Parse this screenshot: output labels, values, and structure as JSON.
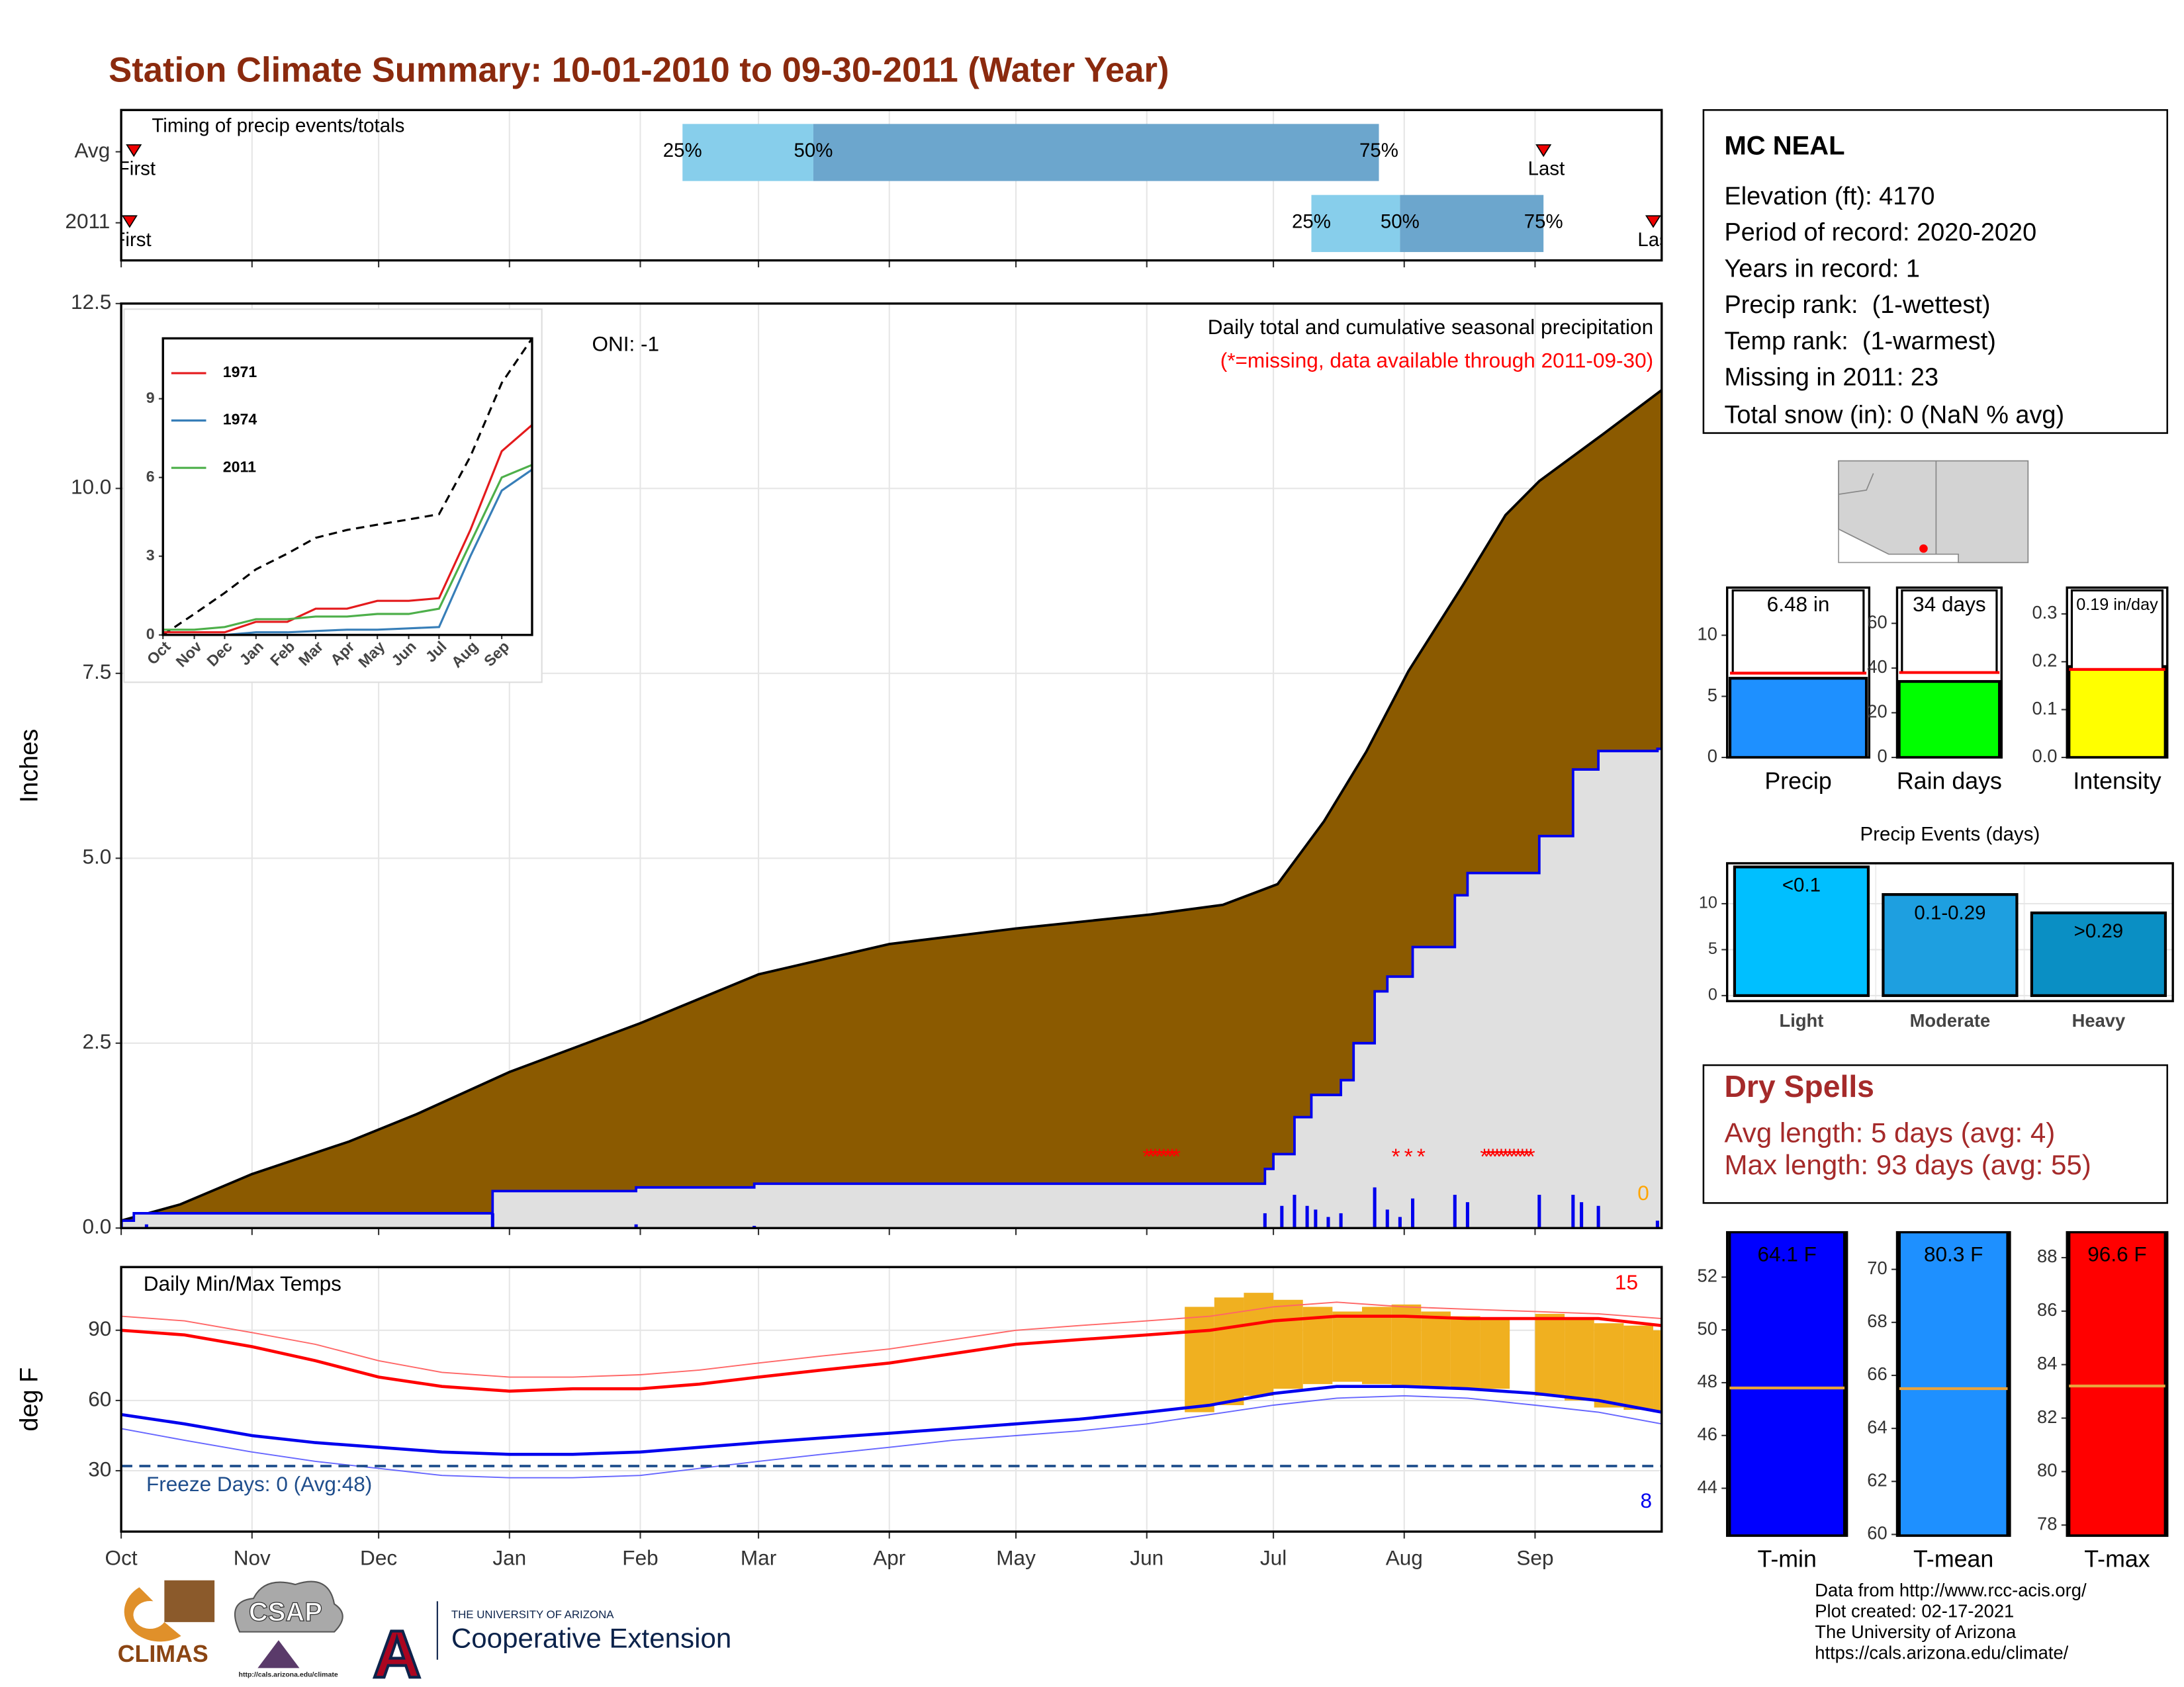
{
  "title": "Station Climate Summary: 10-01-2010 to 09-30-2011 (Water Year)",
  "station": {
    "name": "MC NEAL",
    "lines": [
      "Elevation (ft): 4170",
      "Period of record: 2020-2020",
      "Years in record: 1",
      "Precip rank:  (1-wettest)",
      "Temp rank:  (1-warmest)",
      "Missing in 2011: 23",
      "Total snow (in): 0 (NaN % avg)"
    ]
  },
  "dry_spells": {
    "title": "Dry Spells",
    "lines": [
      "Avg length: 5 days (avg: 4)",
      "Max length: 93 days (avg: 55)"
    ]
  },
  "footer": [
    "Data from http://www.rcc-acis.org/",
    "Plot created: 02-17-2021",
    "The University of Arizona",
    "https://cals.arizona.edu/climate/"
  ],
  "logos": {
    "climas": "CLIMAS",
    "csap": "CSAP",
    "csap_url": "http://cals.arizona.edu/climate",
    "university": "THE UNIVERSITY OF ARIZONA",
    "extension": "Cooperative Extension"
  },
  "chart_data": [
    {
      "type": "timing",
      "title": "Timing of precip events/totals",
      "xlim": [
        0,
        365
      ],
      "xticks": [
        0,
        31,
        61,
        92,
        123,
        151,
        182,
        212,
        243,
        273,
        304,
        335
      ],
      "grid": true,
      "quantile_labels": [
        "25%",
        "50%",
        "75%"
      ],
      "first_label": "First",
      "last_label": "Last",
      "colors": [
        "#87ceeb",
        "#6ca6cd"
      ],
      "marker_color": "#ee0000",
      "rows": [
        {
          "label": "Avg",
          "first": 3,
          "quantiles": [
            133,
            164,
            298
          ],
          "last": 337
        },
        {
          "label": "2011",
          "first": 2,
          "quantiles": [
            282,
            303,
            337
          ],
          "last": 363
        }
      ]
    },
    {
      "type": "area",
      "ylabel": "Inches",
      "xlim": [
        0,
        365
      ],
      "xticks": [
        0,
        31,
        61,
        92,
        123,
        151,
        182,
        212,
        243,
        273,
        304,
        335
      ],
      "ylim": [
        0,
        12.5
      ],
      "yticks": [
        {
          "value": 0,
          "label": "0.0"
        },
        2.5,
        {
          "value": 5,
          "label": "5.0"
        },
        7.5,
        {
          "value": 10,
          "label": "10.0"
        },
        12.5
      ],
      "grid": true,
      "annotations": [
        "ONI: -1",
        "Daily total and cumulative seasonal precipitation",
        "(*=missing, data available through 2011-09-30)",
        "0"
      ],
      "series": [
        {
          "color": "#8b5a00",
          "x": [
            0,
            14,
            31,
            54,
            70,
            92,
            123,
            151,
            182,
            212,
            244,
            261,
            274,
            285,
            295,
            305,
            318,
            328,
            336,
            351,
            365
          ],
          "values": [
            0.1,
            0.32,
            0.73,
            1.17,
            1.54,
            2.11,
            2.77,
            3.43,
            3.84,
            4.05,
            4.24,
            4.37,
            4.65,
            5.5,
            6.44,
            7.53,
            8.7,
            9.64,
            10.1,
            10.73,
            11.33
          ]
        },
        {
          "color": "#0000ee",
          "x": [
            0,
            3,
            88,
            122,
            150,
            271,
            273,
            278,
            282,
            289,
            292,
            297,
            300,
            306,
            316,
            319,
            336,
            344,
            350,
            364
          ],
          "values": [
            0.1,
            0.2,
            0.5,
            0.55,
            0.6,
            0.8,
            1.0,
            1.5,
            1.8,
            2.0,
            2.5,
            3.2,
            3.4,
            3.8,
            4.5,
            4.8,
            5.3,
            6.2,
            6.45,
            6.48
          ]
        },
        {
          "color": "#0000ee",
          "x": [
            0,
            6,
            88,
            122,
            150,
            271,
            275,
            278,
            281,
            283,
            286,
            289,
            297,
            300,
            303,
            306,
            316,
            319,
            336,
            344,
            346,
            350,
            364
          ],
          "values": [
            0.1,
            0.05,
            0.2,
            0.05,
            0.03,
            0.2,
            0.3,
            0.45,
            0.3,
            0.25,
            0.15,
            0.2,
            0.55,
            0.25,
            0.15,
            0.4,
            0.45,
            0.35,
            0.45,
            0.45,
            0.35,
            0.3,
            0.1
          ]
        }
      ],
      "missing_marker": "*",
      "missing_color": "#ff0000",
      "missing_days": [
        243,
        244,
        245,
        246,
        247,
        248,
        249,
        250,
        302,
        305,
        308,
        323,
        324,
        325,
        326,
        327,
        328,
        329,
        330,
        331,
        332,
        333,
        334
      ]
    },
    {
      "type": "line",
      "xlim": [
        0,
        365
      ],
      "xticks": [
        {
          "value": 0,
          "label": "Oct"
        },
        {
          "value": 31,
          "label": "Nov"
        },
        {
          "value": 61,
          "label": "Dec"
        },
        {
          "value": 92,
          "label": "Jan"
        },
        {
          "value": 123,
          "label": "Feb"
        },
        {
          "value": 151,
          "label": "Mar"
        },
        {
          "value": 182,
          "label": "Apr"
        },
        {
          "value": 212,
          "label": "May"
        },
        {
          "value": 243,
          "label": "Jun"
        },
        {
          "value": 273,
          "label": "Jul"
        },
        {
          "value": 304,
          "label": "Aug"
        },
        {
          "value": 335,
          "label": "Sep"
        }
      ],
      "ylim": [
        0,
        11.3
      ],
      "yticks": [
        0,
        3,
        6,
        9
      ],
      "x": [
        0,
        31,
        61,
        92,
        123,
        151,
        182,
        212,
        243,
        273,
        304,
        335,
        365
      ],
      "series": [
        {
          "color": "#000000",
          "dashed": true,
          "values": [
            0,
            0.8,
            1.6,
            2.5,
            3.1,
            3.7,
            4.0,
            4.2,
            4.4,
            4.6,
            6.8,
            9.6,
            11.3
          ]
        },
        {
          "name": "1971",
          "color": "#e41a1c",
          "values": [
            0.1,
            0.1,
            0.1,
            0.5,
            0.5,
            1.0,
            1.0,
            1.3,
            1.3,
            1.4,
            4.0,
            7.0,
            8.0
          ]
        },
        {
          "name": "1974",
          "color": "#377eb8",
          "values": [
            0,
            0,
            0,
            0.1,
            0.1,
            0.15,
            0.2,
            0.2,
            0.25,
            0.3,
            3.0,
            5.5,
            6.3
          ]
        },
        {
          "name": "2011",
          "color": "#4daf4a",
          "values": [
            0.2,
            0.2,
            0.3,
            0.6,
            0.6,
            0.7,
            0.7,
            0.8,
            0.8,
            1.0,
            3.5,
            6.0,
            6.48
          ]
        }
      ]
    },
    {
      "type": "bar",
      "categories": [
        "Precip"
      ],
      "values": [
        6.48
      ],
      "value_labels": [
        "6.48 in"
      ],
      "average": [
        6.9
      ],
      "average_color": "#ff0000",
      "color": "#1e90ff",
      "ylim": [
        0,
        13.9
      ],
      "yticks": [
        0,
        5,
        10
      ]
    },
    {
      "type": "bar",
      "categories": [
        "Rain days"
      ],
      "values": [
        34
      ],
      "value_labels": [
        "34 days"
      ],
      "average": [
        38
      ],
      "average_color": "#ff0000",
      "color": "#00ff00",
      "ylim": [
        0,
        76
      ],
      "yticks": [
        0,
        20,
        40,
        60
      ]
    },
    {
      "type": "bar",
      "categories": [
        "Intensity"
      ],
      "values": [
        0.19
      ],
      "value_labels": [
        "0.19 in/day"
      ],
      "average": [
        0.184
      ],
      "average_color": "#ff0000",
      "color": "#ffff00",
      "ylim": [
        0,
        0.355
      ],
      "yticks": [
        {
          "value": 0,
          "label": "0.0"
        },
        0.1,
        0.2,
        0.3
      ]
    },
    {
      "type": "bar",
      "title": "Precip Events (days)",
      "categories": [
        "Light",
        "Moderate",
        "Heavy"
      ],
      "values": [
        14,
        11,
        9
      ],
      "bin_labels": [
        "<0.1",
        "0.1-0.29",
        ">0.29"
      ],
      "colors": [
        "#00bfff",
        "#1e9fe0",
        "#0a8fc4"
      ],
      "ylim": [
        -0.6,
        14.4
      ],
      "yticks": [
        0,
        5,
        10
      ],
      "grid": true
    },
    {
      "type": "range",
      "title": "Daily Min/Max Temps",
      "ylabel": "deg F",
      "xlim": [
        0,
        365
      ],
      "xticks": [
        {
          "value": 0,
          "label": "Oct"
        },
        {
          "value": 31,
          "label": "Nov"
        },
        {
          "value": 61,
          "label": "Dec"
        },
        {
          "value": 92,
          "label": "Jan"
        },
        {
          "value": 123,
          "label": "Feb"
        },
        {
          "value": 151,
          "label": "Mar"
        },
        {
          "value": 182,
          "label": "Apr"
        },
        {
          "value": 212,
          "label": "May"
        },
        {
          "value": 243,
          "label": "Jun"
        },
        {
          "value": 273,
          "label": "Jul"
        },
        {
          "value": 304,
          "label": "Aug"
        },
        {
          "value": 335,
          "label": "Sep"
        }
      ],
      "ylim": [
        4,
        117
      ],
      "yticks": [
        30,
        60,
        90
      ],
      "grid": true,
      "x": [
        0,
        15,
        31,
        46,
        61,
        76,
        92,
        107,
        123,
        137,
        151,
        166,
        182,
        197,
        212,
        227,
        243,
        258,
        273,
        288,
        304,
        319,
        335,
        350,
        365
      ],
      "series": [
        {
          "color": "#ff6666",
          "values": [
            96,
            94,
            89,
            84,
            77,
            72,
            70,
            70,
            71,
            73,
            76,
            79,
            82,
            86,
            90,
            92,
            94,
            96,
            100,
            102,
            100,
            99,
            98,
            97,
            95
          ]
        },
        {
          "color": "#6666ff",
          "values": [
            48,
            43,
            38,
            34,
            31,
            28,
            27,
            27,
            28,
            31,
            34,
            37,
            40,
            43,
            45,
            47,
            50,
            54,
            58,
            61,
            62,
            61,
            58,
            55,
            50
          ]
        },
        {
          "color": "#ff0000",
          "values": [
            90,
            88,
            83,
            77,
            70,
            66,
            64,
            65,
            65,
            67,
            70,
            73,
            76,
            80,
            84,
            86,
            88,
            90,
            94,
            96,
            96,
            95,
            95,
            95,
            92
          ]
        },
        {
          "color": "#0000ee",
          "values": [
            54,
            50,
            45,
            42,
            40,
            38,
            37,
            37,
            38,
            40,
            42,
            44,
            46,
            48,
            50,
            52,
            55,
            58,
            63,
            66,
            66,
            65,
            63,
            60,
            55
          ]
        }
      ],
      "ranges": {
        "color": "#f0b020",
        "x": [
          252,
          259,
          266,
          273,
          280,
          287,
          294,
          301,
          308,
          315,
          322,
          335,
          342,
          349,
          356,
          363
        ],
        "low": [
          55,
          58,
          62,
          65,
          67,
          68,
          67,
          66,
          66,
          65,
          65,
          62,
          60,
          57,
          56,
          55
        ],
        "high": [
          100,
          104,
          106,
          103,
          100,
          98,
          100,
          101,
          98,
          96,
          95,
          97,
          95,
          93,
          92,
          90
        ]
      },
      "freeze_line": 32,
      "freeze_color": "#1f4e8c",
      "annotations": [
        "Freeze Days: 0 (Avg:48)",
        "15",
        "8"
      ]
    },
    {
      "type": "bar",
      "categories": [
        "T-min"
      ],
      "values": [
        64.1
      ],
      "value_labels": [
        "64.1 F"
      ],
      "average": [
        47.8
      ],
      "average_color": "#e8a33d",
      "color": "#0000ff",
      "ylim": [
        42.2,
        53.7
      ],
      "yticks": [
        44,
        46,
        48,
        50,
        52
      ]
    },
    {
      "type": "bar",
      "categories": [
        "T-mean"
      ],
      "values": [
        80.3
      ],
      "value_labels": [
        "80.3 F"
      ],
      "average": [
        65.5
      ],
      "average_color": "#e8a33d",
      "color": "#1e90ff",
      "ylim": [
        59.95,
        71.4
      ],
      "yticks": [
        60,
        62,
        64,
        66,
        68,
        70
      ]
    },
    {
      "type": "bar",
      "categories": [
        "T-max"
      ],
      "values": [
        96.6
      ],
      "value_labels": [
        "96.6 F"
      ],
      "average": [
        83.2
      ],
      "average_color": "#e8a33d",
      "color": "#ff0000",
      "ylim": [
        77.6,
        88.95
      ],
      "yticks": [
        78,
        80,
        82,
        84,
        86,
        88
      ]
    }
  ]
}
